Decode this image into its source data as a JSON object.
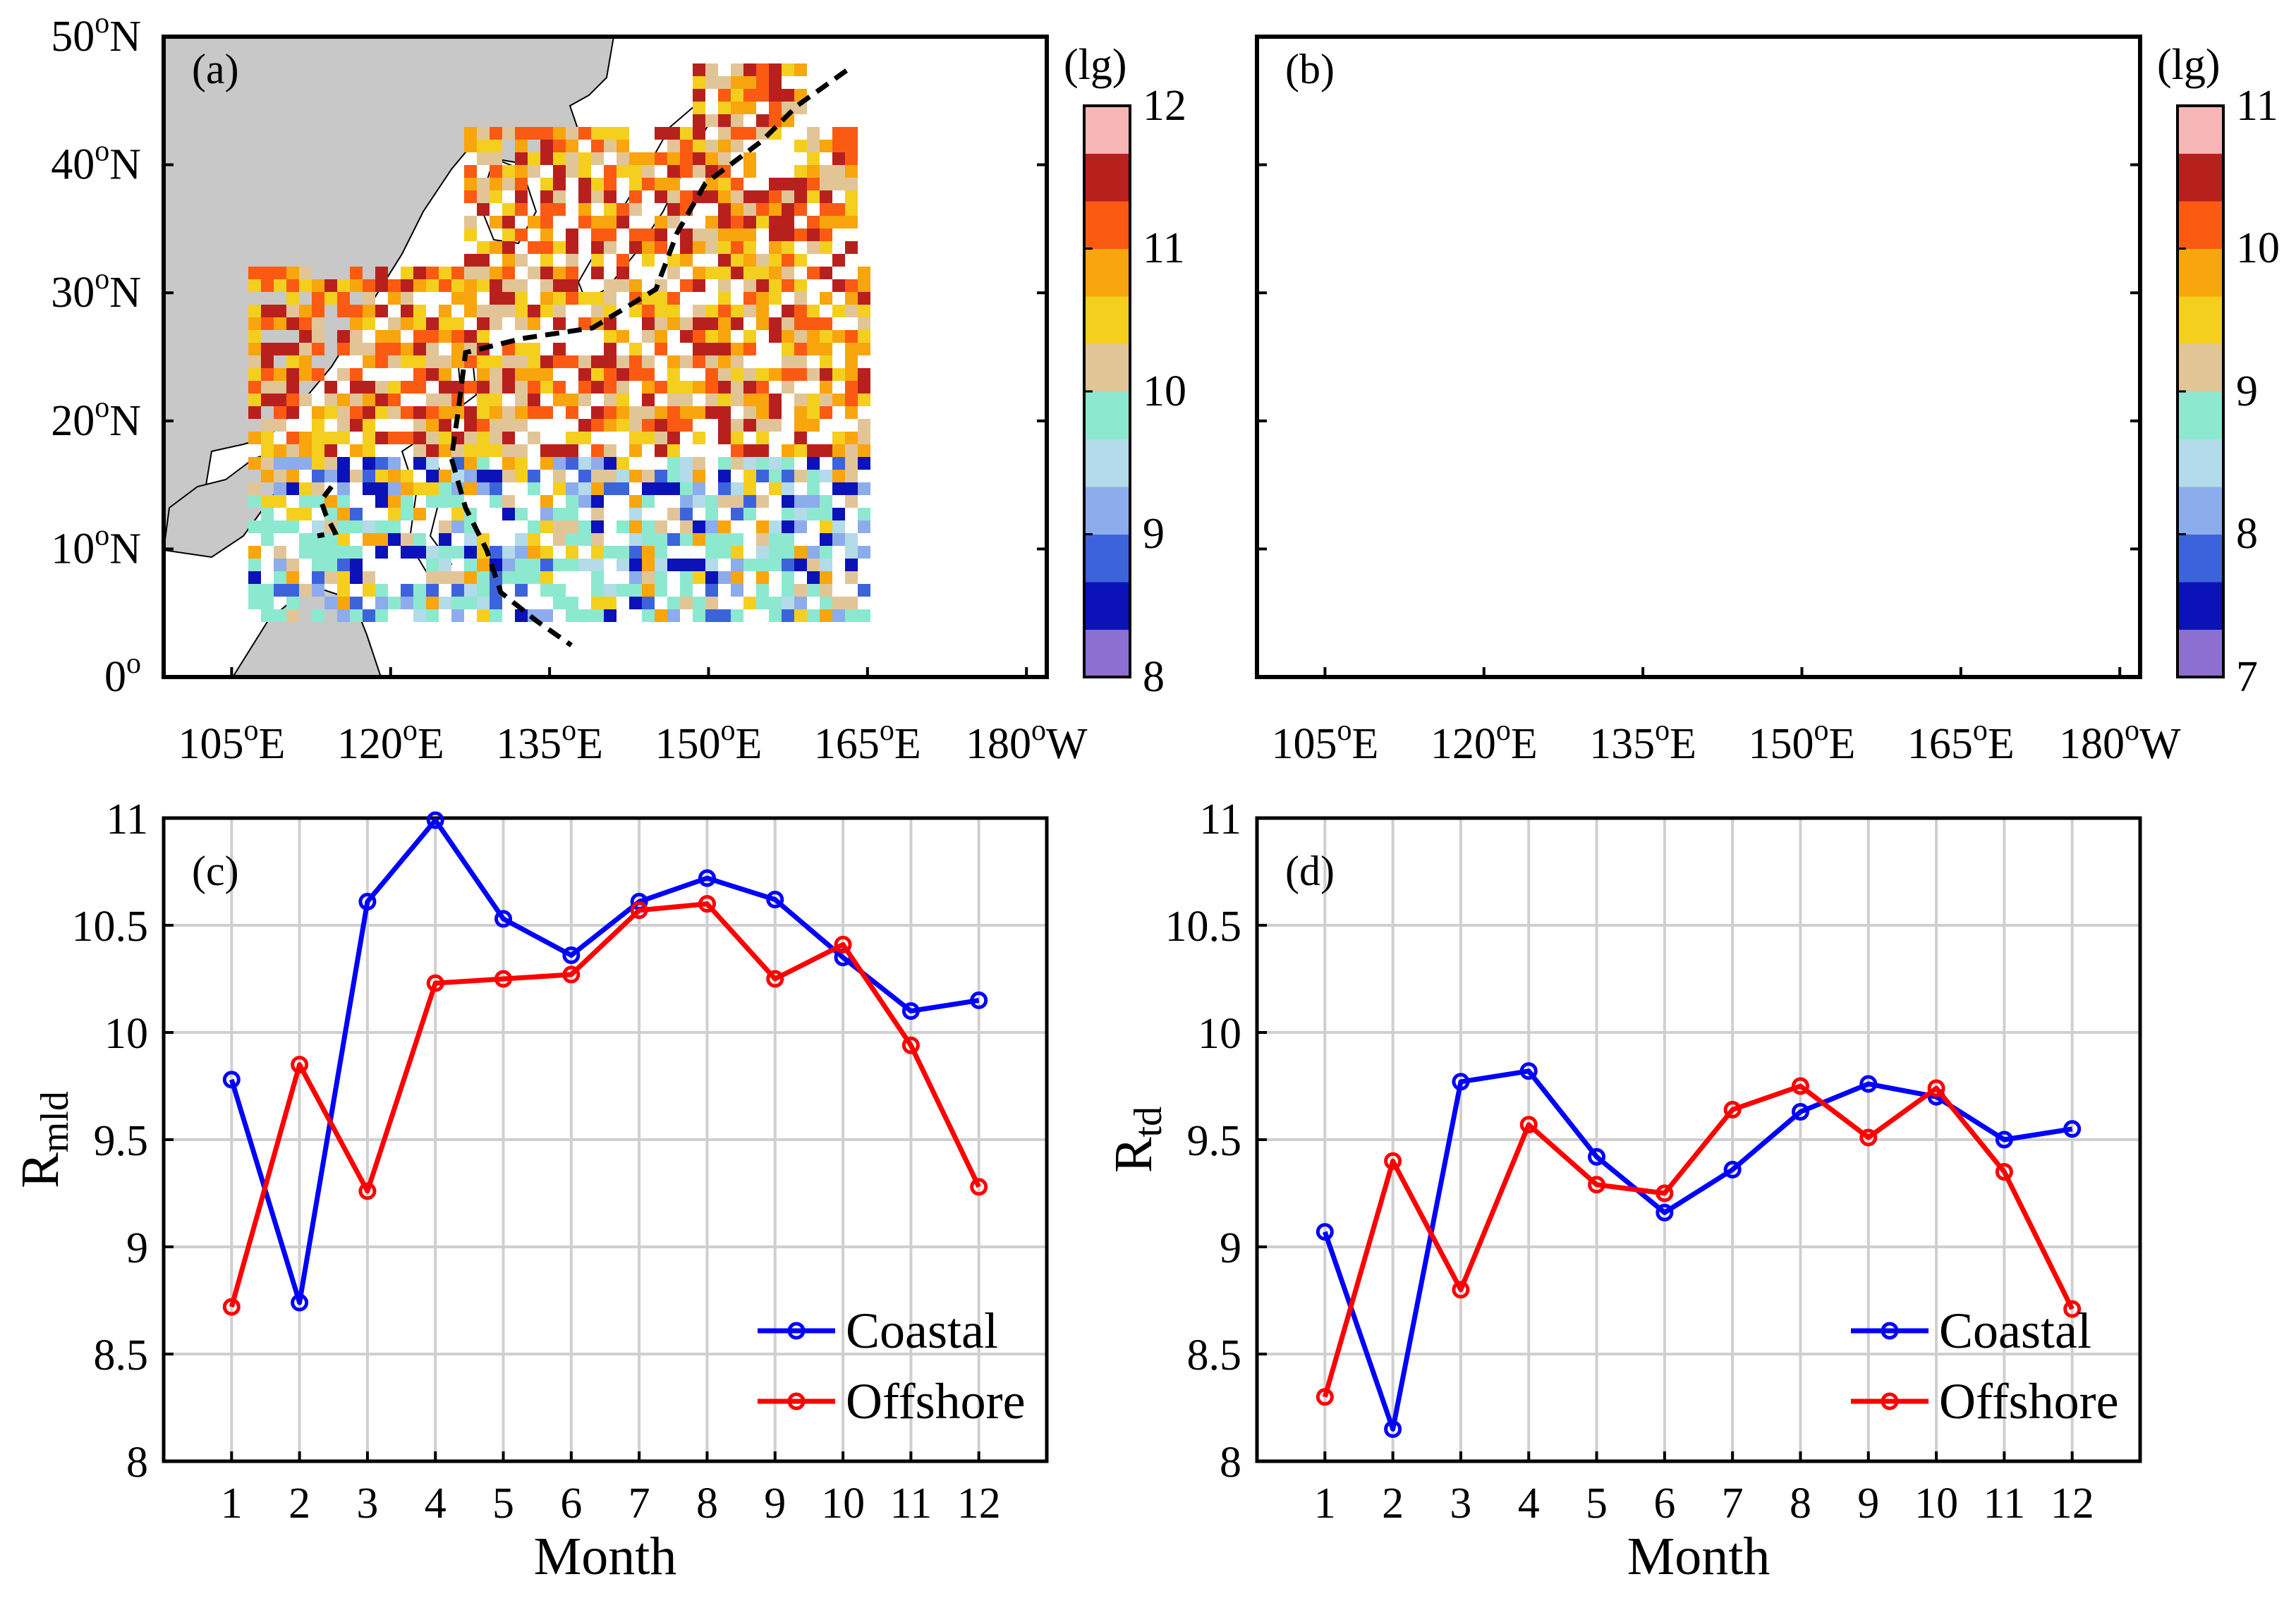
{
  "maps": [
    {
      "label": "(a)",
      "colorbar": {
        "unit": "(lg)",
        "ticks": [
          "8",
          "9",
          "10",
          "11",
          "12"
        ]
      },
      "cell_seed": 11
    },
    {
      "label": "(b)",
      "colorbar": {
        "unit": "(lg)",
        "ticks": [
          "7",
          "8",
          "9",
          "10",
          "11"
        ]
      },
      "cell_seed": 29
    }
  ],
  "map_axes": {
    "lon_ticks": [
      "105",
      "120",
      "135",
      "150",
      "165",
      "180"
    ],
    "lon_suffix": [
      "E",
      "E",
      "E",
      "E",
      "E",
      "W"
    ],
    "lat_ticks": [
      "0",
      "10",
      "20",
      "30",
      "40",
      "50"
    ],
    "lat_suffix": [
      "",
      "N",
      "N",
      "N",
      "N",
      "N"
    ],
    "degree_symbol": "o",
    "lon_range": [
      100,
      180
    ],
    "lat_range": [
      0,
      50
    ]
  },
  "colorbar_colors": [
    "#8c6fd1",
    "#0a12b8",
    "#3d63dc",
    "#8cacec",
    "#b3dbe9",
    "#8de8d0",
    "#e2c597",
    "#f5cf1e",
    "#f9a50d",
    "#fb5a13",
    "#b8201e",
    "#f6b6b6"
  ],
  "chart_data": [
    {
      "type": "line",
      "panel": "(c)",
      "xlabel": "Month",
      "ylabel_main": "R",
      "ylabel_sub": "mld",
      "x": [
        1,
        2,
        3,
        4,
        5,
        6,
        7,
        8,
        9,
        10,
        11,
        12
      ],
      "xlim": [
        0,
        13
      ],
      "ylim": [
        8,
        11
      ],
      "yticks": [
        8,
        8.5,
        9,
        9.5,
        10,
        10.5,
        11
      ],
      "ytick_labels": [
        "8",
        "8.5",
        "9",
        "9.5",
        "10",
        "10.5",
        "11"
      ],
      "xtick_labels": [
        "1",
        "2",
        "3",
        "4",
        "5",
        "6",
        "7",
        "8",
        "9",
        "10",
        "11",
        "12"
      ],
      "grid": true,
      "legend_position": "bottom-right",
      "series": [
        {
          "name": "Coastal",
          "color": "#0000ff",
          "values": [
            9.78,
            8.74,
            10.61,
            10.99,
            10.53,
            10.36,
            10.61,
            10.72,
            10.62,
            10.35,
            10.1,
            10.15
          ]
        },
        {
          "name": "Offshore",
          "color": "#ff0000",
          "values": [
            8.72,
            9.85,
            9.26,
            10.23,
            10.25,
            10.27,
            10.57,
            10.6,
            10.25,
            10.41,
            9.94,
            9.28
          ]
        }
      ]
    },
    {
      "type": "line",
      "panel": "(d)",
      "xlabel": "Month",
      "ylabel_main": "R",
      "ylabel_sub": "td",
      "x": [
        1,
        2,
        3,
        4,
        5,
        6,
        7,
        8,
        9,
        10,
        11,
        12
      ],
      "xlim": [
        0,
        13
      ],
      "ylim": [
        8,
        11
      ],
      "yticks": [
        8,
        8.5,
        9,
        9.5,
        10,
        10.5,
        11
      ],
      "ytick_labels": [
        "8",
        "8.5",
        "9",
        "9.5",
        "10",
        "10.5",
        "11"
      ],
      "xtick_labels": [
        "1",
        "2",
        "3",
        "4",
        "5",
        "6",
        "7",
        "8",
        "9",
        "10",
        "11",
        "12"
      ],
      "grid": true,
      "legend_position": "bottom-right",
      "series": [
        {
          "name": "Coastal",
          "color": "#0000ff",
          "values": [
            9.07,
            8.15,
            9.77,
            9.82,
            9.42,
            9.16,
            9.36,
            9.63,
            9.76,
            9.7,
            9.5,
            9.55
          ]
        },
        {
          "name": "Offshore",
          "color": "#ff0000",
          "values": [
            8.3,
            9.4,
            8.8,
            9.57,
            9.29,
            9.25,
            9.64,
            9.75,
            9.51,
            9.74,
            9.35,
            8.71
          ]
        }
      ]
    }
  ]
}
